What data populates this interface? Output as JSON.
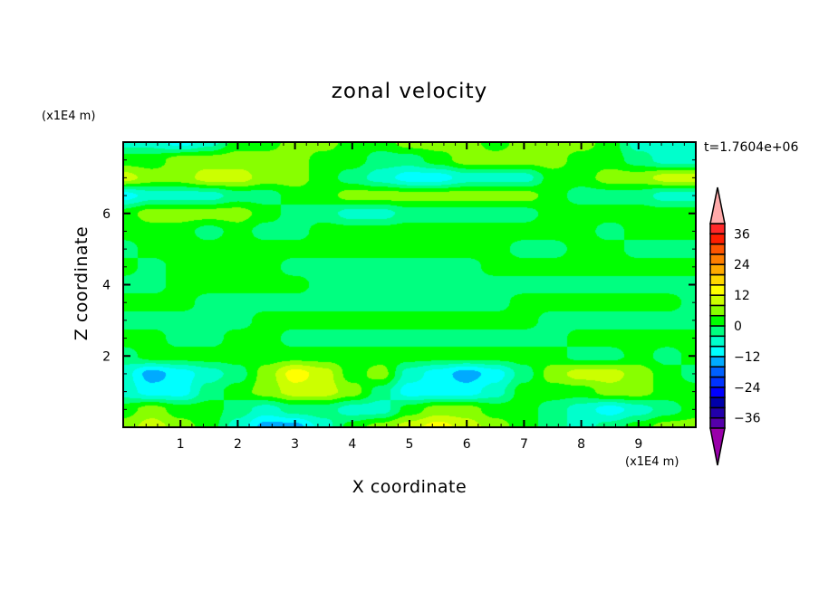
{
  "chart_data": {
    "type": "heatmap",
    "title": "zonal velocity",
    "xlabel": "X coordinate",
    "ylabel": "Z coordinate",
    "x_unit": "(x1E4 m)",
    "y_unit": "(x1E4 m)",
    "annotation": "t=1.7604e+06",
    "xlim": [
      0,
      10
    ],
    "ylim": [
      0,
      8
    ],
    "x_ticks": [
      1,
      2,
      3,
      4,
      5,
      6,
      7,
      8,
      9
    ],
    "y_ticks": [
      2,
      4,
      6
    ],
    "grid": false,
    "grid_x": [
      0,
      0.5,
      1,
      1.5,
      2,
      2.5,
      3,
      3.5,
      4,
      4.5,
      5,
      5.5,
      6,
      6.5,
      7,
      7.5,
      8,
      8.5,
      9,
      9.5,
      10
    ],
    "grid_z": [
      8,
      7.5,
      7,
      6.5,
      6,
      5.5,
      5,
      4.5,
      4,
      3.5,
      3,
      2.5,
      2,
      1.5,
      1,
      0.5,
      0
    ],
    "values": [
      [
        -6,
        -6,
        -10,
        -6,
        2,
        2,
        6,
        6,
        2,
        2,
        6,
        6,
        6,
        2,
        6,
        6,
        6,
        2,
        -6,
        -6,
        -6
      ],
      [
        2,
        2,
        6,
        6,
        6,
        6,
        6,
        2,
        2,
        -2,
        -2,
        2,
        6,
        6,
        6,
        6,
        2,
        2,
        -2,
        -6,
        -6
      ],
      [
        10,
        6,
        6,
        10,
        10,
        6,
        6,
        2,
        -2,
        -6,
        -10,
        -10,
        -6,
        -6,
        -6,
        2,
        2,
        6,
        6,
        10,
        10
      ],
      [
        -10,
        -6,
        -6,
        -6,
        -2,
        -2,
        2,
        2,
        6,
        6,
        6,
        6,
        6,
        6,
        6,
        2,
        -2,
        -2,
        -2,
        -6,
        -6
      ],
      [
        2,
        6,
        6,
        6,
        6,
        2,
        -2,
        -2,
        -6,
        -6,
        -2,
        -2,
        -2,
        -2,
        -2,
        2,
        2,
        2,
        2,
        2,
        2
      ],
      [
        2,
        2,
        2,
        -2,
        2,
        -2,
        -2,
        2,
        2,
        2,
        2,
        2,
        2,
        2,
        2,
        2,
        2,
        -2,
        2,
        2,
        2
      ],
      [
        -2,
        2,
        2,
        2,
        2,
        2,
        2,
        2,
        2,
        2,
        2,
        2,
        2,
        2,
        -2,
        -2,
        2,
        2,
        -2,
        -2,
        -2
      ],
      [
        2,
        -2,
        2,
        2,
        2,
        2,
        -2,
        -2,
        -2,
        -2,
        -2,
        -2,
        -2,
        2,
        2,
        2,
        2,
        2,
        2,
        2,
        2
      ],
      [
        -2,
        -2,
        2,
        2,
        2,
        2,
        2,
        -2,
        -2,
        -2,
        -2,
        -2,
        -2,
        -2,
        -2,
        -2,
        -2,
        -2,
        -2,
        -2,
        -2
      ],
      [
        2,
        2,
        2,
        -2,
        -2,
        -2,
        -2,
        -2,
        -2,
        -2,
        -2,
        -2,
        -2,
        -2,
        2,
        2,
        2,
        2,
        2,
        2,
        -2
      ],
      [
        -2,
        -2,
        -2,
        -2,
        -2,
        2,
        2,
        2,
        2,
        2,
        2,
        2,
        2,
        2,
        2,
        -2,
        -2,
        -2,
        -2,
        -2,
        -2
      ],
      [
        2,
        2,
        -2,
        -2,
        2,
        2,
        -2,
        -2,
        -2,
        -2,
        -2,
        -2,
        -2,
        -2,
        -2,
        -2,
        2,
        2,
        2,
        2,
        2
      ],
      [
        -2,
        2,
        2,
        2,
        2,
        2,
        2,
        2,
        2,
        2,
        2,
        2,
        2,
        2,
        2,
        2,
        -2,
        -2,
        2,
        -2,
        2
      ],
      [
        -6,
        -14,
        -10,
        -6,
        -2,
        6,
        14,
        10,
        2,
        6,
        -6,
        -10,
        -14,
        -10,
        -2,
        6,
        10,
        10,
        6,
        2,
        -2
      ],
      [
        -6,
        -10,
        -10,
        -2,
        2,
        6,
        10,
        10,
        6,
        -2,
        -10,
        -10,
        -10,
        -6,
        2,
        2,
        2,
        6,
        6,
        2,
        2
      ],
      [
        2,
        6,
        2,
        2,
        -2,
        -6,
        -2,
        -2,
        -6,
        -6,
        2,
        6,
        6,
        2,
        2,
        -2,
        -6,
        -10,
        -6,
        -2,
        2
      ],
      [
        6,
        10,
        6,
        2,
        -6,
        -14,
        -14,
        -6,
        2,
        6,
        10,
        14,
        10,
        6,
        2,
        -2,
        -6,
        -2,
        2,
        6,
        6
      ]
    ],
    "colorbar": {
      "levels": [
        -40,
        -36,
        -32,
        -28,
        -24,
        -20,
        -16,
        -12,
        -8,
        -4,
        0,
        4,
        8,
        12,
        16,
        20,
        24,
        28,
        32,
        36,
        40
      ],
      "tick_labels": [
        "36",
        "24",
        "12",
        "0",
        "−12",
        "−24",
        "−36"
      ],
      "tick_values": [
        36,
        24,
        12,
        0,
        -12,
        -24,
        -36
      ],
      "colors": [
        "#5500aa",
        "#2200aa",
        "#0000aa",
        "#0000ff",
        "#0033ff",
        "#0060ff",
        "#00aaff",
        "#00ffff",
        "#00ffcc",
        "#00ff80",
        "#00ff00",
        "#88ff00",
        "#ccff00",
        "#ffff00",
        "#ffd700",
        "#ffaa00",
        "#ff7f00",
        "#ff5500",
        "#ff1e00",
        "#ff2828"
      ],
      "over_color": "#ffaaaa",
      "under_color": "#9900aa"
    }
  }
}
